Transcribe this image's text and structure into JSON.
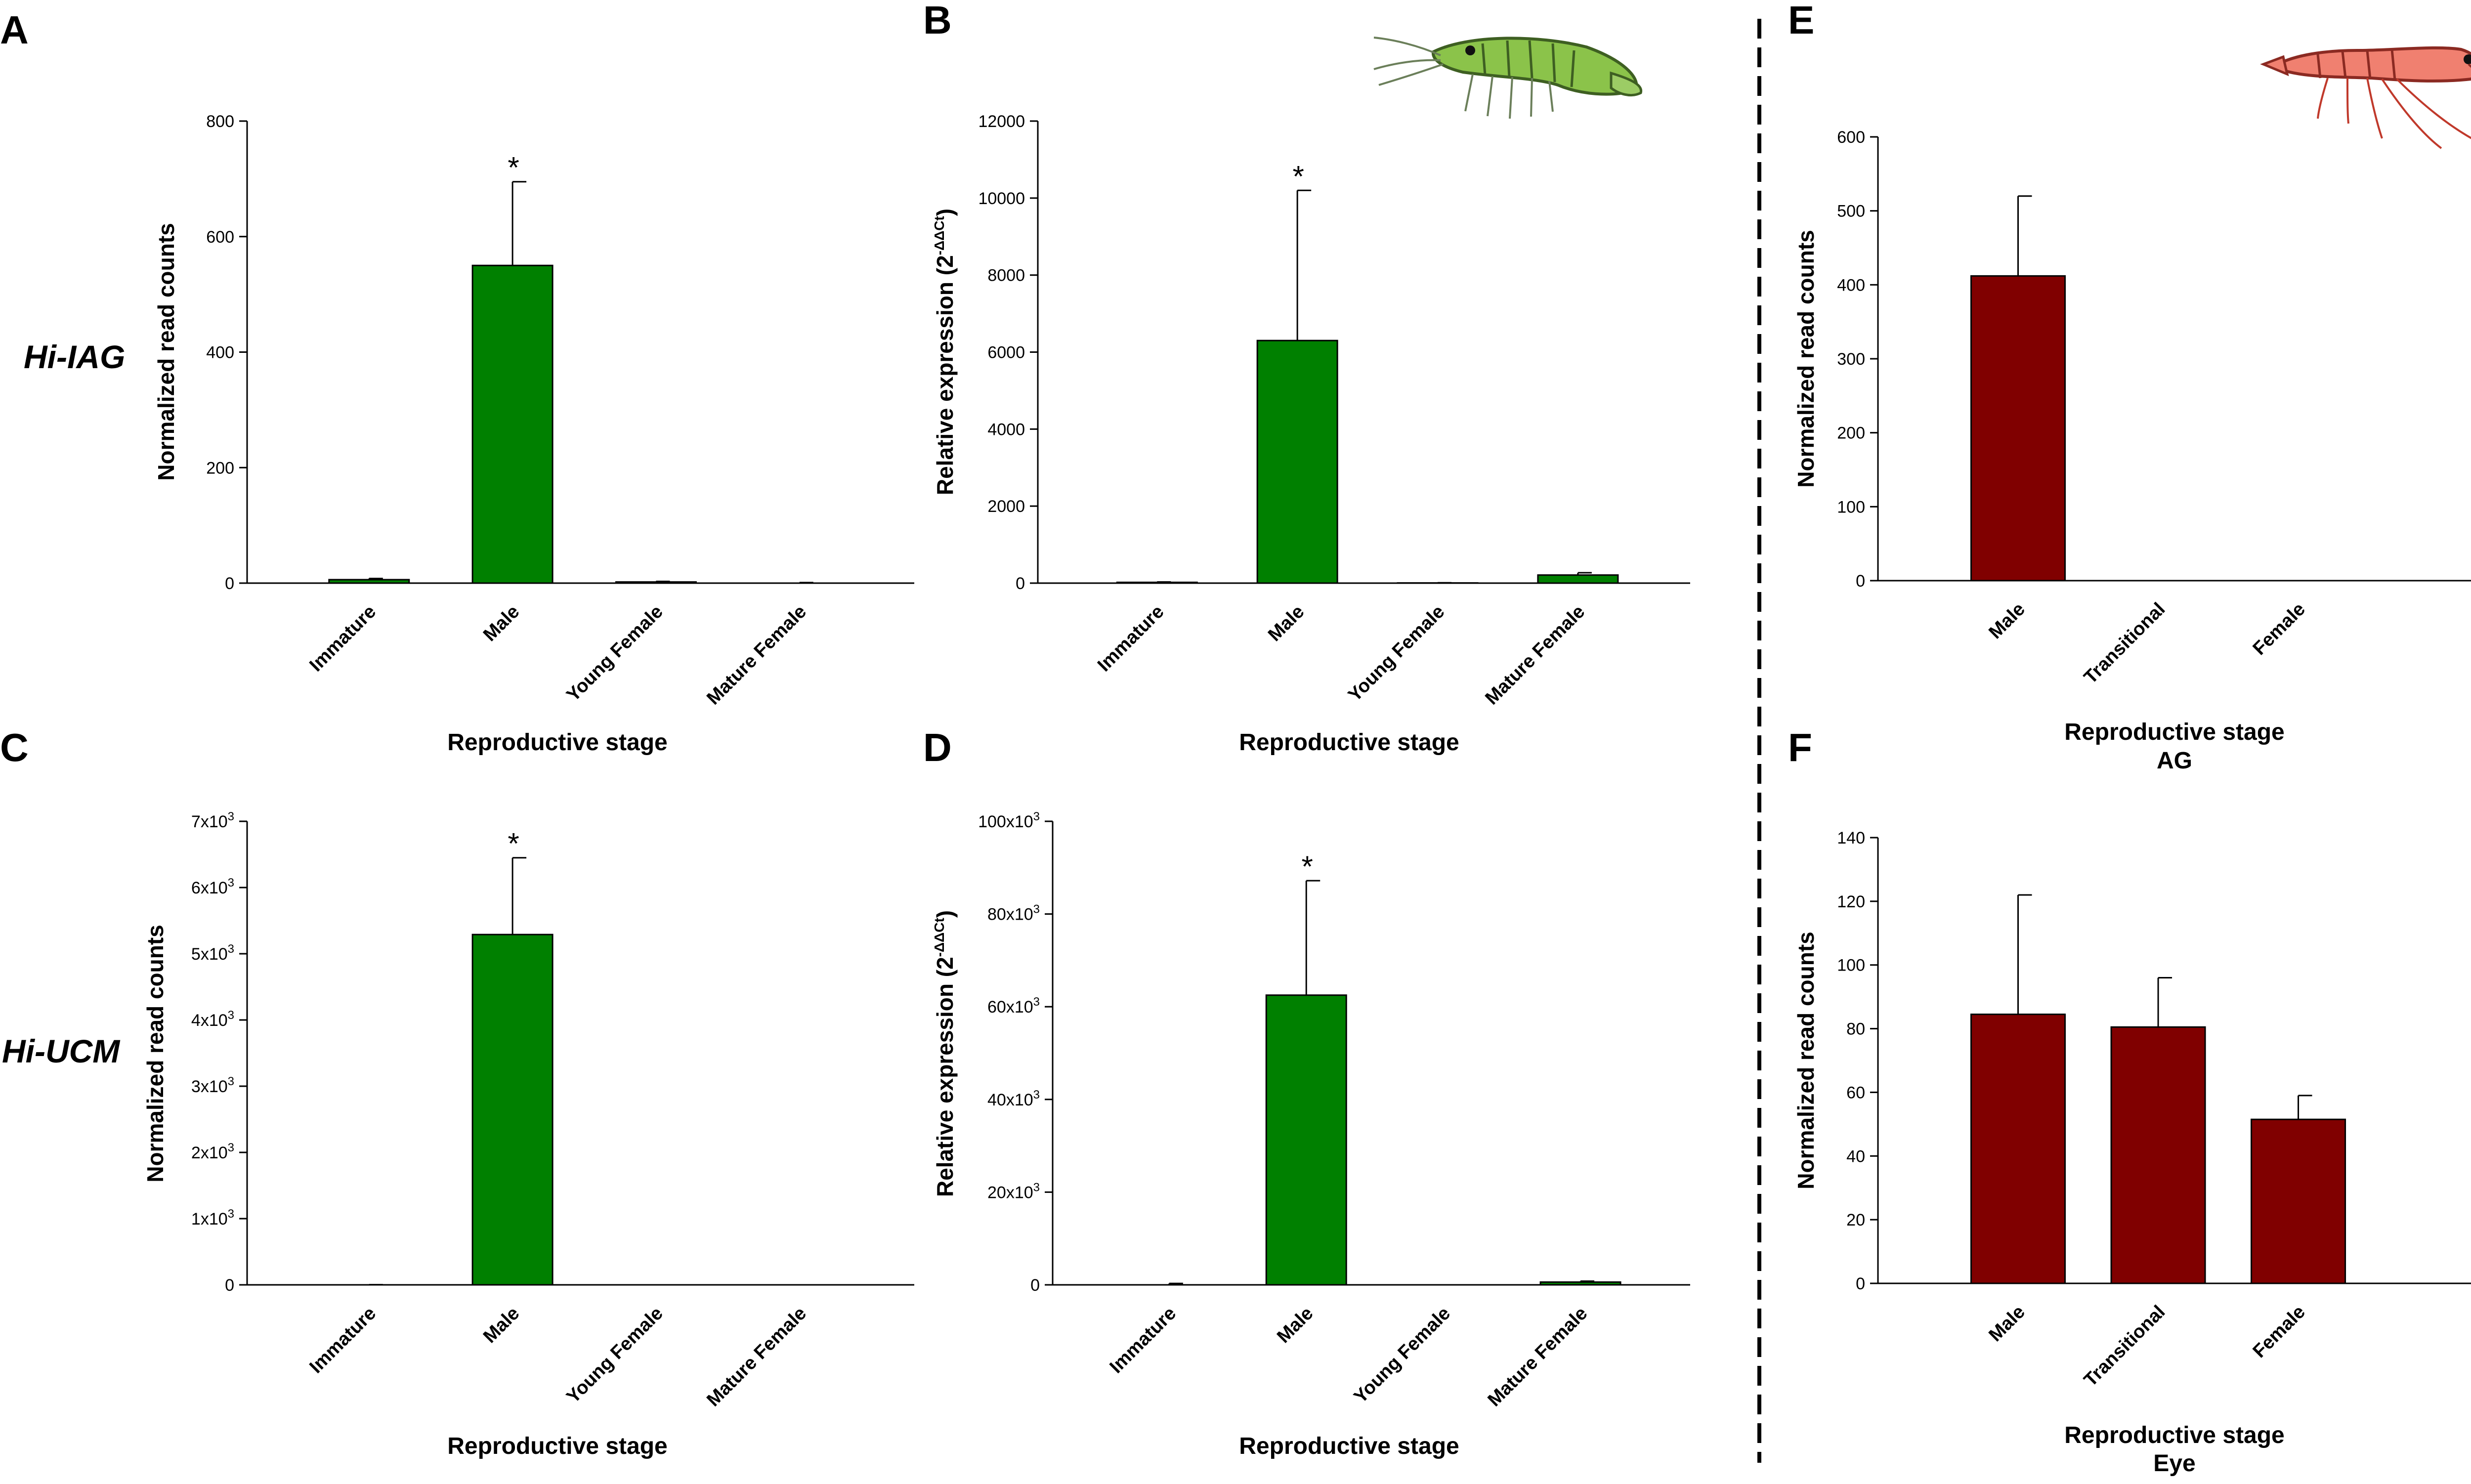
{
  "gene_labels": [
    "Hi-IAG",
    "Hi-UCM"
  ],
  "chart_data": [
    {
      "panel": "A",
      "type": "bar",
      "color": "#008000",
      "categories": [
        "Immature",
        "Male",
        "Young Female",
        "Mature Female"
      ],
      "values": [
        6,
        550,
        2,
        0
      ],
      "errors": [
        2,
        145,
        1,
        1
      ],
      "significant": [
        false,
        true,
        false,
        false
      ],
      "yticks": [
        0,
        200,
        400,
        600,
        800
      ],
      "ytick_labels": [
        "0",
        "200",
        "400",
        "600",
        "800"
      ],
      "ylim": [
        0,
        800
      ],
      "ylabel": "Normalized read counts",
      "xlabel": "Reproductive stage"
    },
    {
      "panel": "B",
      "type": "bar",
      "color": "#008000",
      "categories": [
        "Immature",
        "Male",
        "Young Female",
        "Mature Female"
      ],
      "values": [
        20,
        6300,
        5,
        210
      ],
      "errors": [
        10,
        3900,
        5,
        60
      ],
      "significant": [
        false,
        true,
        false,
        false
      ],
      "yticks": [
        0,
        2000,
        4000,
        6000,
        8000,
        10000,
        12000
      ],
      "ytick_labels": [
        "0",
        "2000",
        "4000",
        "6000",
        "8000",
        "10000",
        "12000"
      ],
      "ylim": [
        0,
        12000
      ],
      "ylabel": "Relative expression (2^-ΔΔCt)",
      "ylabel_main": "Relative expression (2",
      "ylabel_sup": "-ΔΔCt",
      "ylabel_end": ")",
      "xlabel": "Reproductive stage"
    },
    {
      "panel": "C",
      "type": "bar",
      "color": "#008000",
      "categories": [
        "Immature",
        "Male",
        "Young Female",
        "Mature Female"
      ],
      "values": [
        0,
        5290,
        0,
        0
      ],
      "errors": [
        3,
        1160,
        0,
        0
      ],
      "significant": [
        false,
        true,
        false,
        false
      ],
      "yticks": [
        0,
        1000,
        2000,
        3000,
        4000,
        5000,
        6000,
        7000
      ],
      "ytick_labels": [
        "0",
        "1x10",
        "2x10",
        "3x10",
        "4x10",
        "5x10",
        "6x10",
        "7x10"
      ],
      "ytick_sup": [
        "",
        "3",
        "3",
        "3",
        "3",
        "3",
        "3",
        "3"
      ],
      "ylim": [
        0,
        7000
      ],
      "ylabel": "Normalized read counts",
      "xlabel": "Reproductive stage"
    },
    {
      "panel": "D",
      "type": "bar",
      "color": "#008000",
      "categories": [
        "Immature",
        "Male",
        "Young Female",
        "Mature Female"
      ],
      "values": [
        0,
        62500,
        0,
        600
      ],
      "errors": [
        300,
        24700,
        0,
        200
      ],
      "significant": [
        false,
        true,
        false,
        false
      ],
      "yticks": [
        0,
        20000,
        40000,
        60000,
        80000,
        100000
      ],
      "ytick_labels": [
        "0",
        "20x10",
        "40x10",
        "60x10",
        "80x10",
        "100x10"
      ],
      "ytick_sup": [
        "",
        "3",
        "3",
        "3",
        "3",
        "3"
      ],
      "ylim": [
        0,
        100000
      ],
      "ylabel": "Relative expression (2^-ΔΔCt)",
      "ylabel_main": "Relative expression (2",
      "ylabel_sup": "-ΔΔCt",
      "ylabel_end": ")",
      "xlabel": "Reproductive stage"
    },
    {
      "panel": "E",
      "type": "bar",
      "color": "#800000",
      "categories": [
        "Male",
        "Transitional",
        "Female"
      ],
      "values": [
        412,
        0,
        0
      ],
      "errors": [
        108,
        0,
        0
      ],
      "significant": [
        false,
        false,
        false
      ],
      "yticks": [
        0,
        100,
        200,
        300,
        400,
        500,
        600
      ],
      "ytick_labels": [
        "0",
        "100",
        "200",
        "300",
        "400",
        "500",
        "600"
      ],
      "ylim": [
        0,
        600
      ],
      "ylabel": "Normalized read counts",
      "xlabel": "Reproductive stage",
      "xlabel2": "AG"
    },
    {
      "panel": "F",
      "type": "bar",
      "color": "#800000",
      "categories": [
        "Male",
        "Transitional",
        "Female"
      ],
      "values": [
        84.5,
        80.5,
        51.5
      ],
      "errors": [
        37.5,
        15.5,
        7.5
      ],
      "significant": [
        false,
        false,
        false
      ],
      "yticks": [
        0,
        20,
        40,
        60,
        80,
        100,
        120,
        140
      ],
      "ytick_labels": [
        "0",
        "20",
        "40",
        "60",
        "80",
        "100",
        "120",
        "140"
      ],
      "ylim": [
        0,
        140
      ],
      "ylabel": "Normalized read counts",
      "xlabel": "Reproductive stage",
      "xlabel2": "Eye"
    }
  ]
}
